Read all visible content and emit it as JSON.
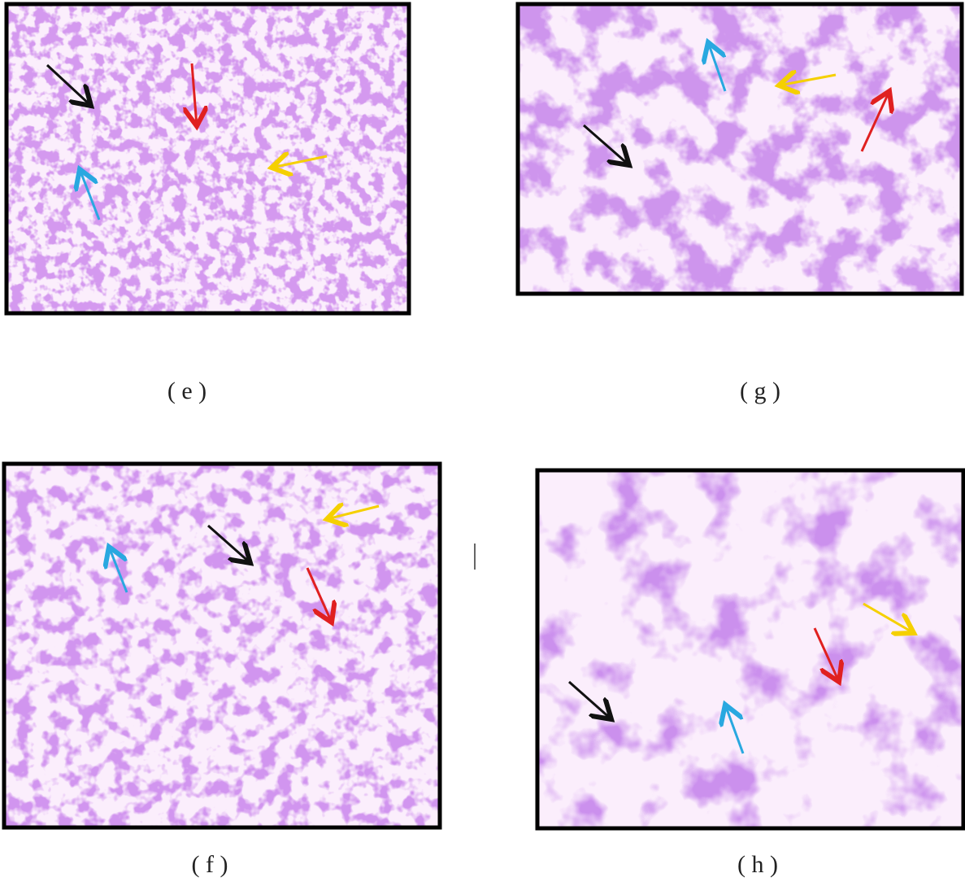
{
  "panels": [
    {
      "label": "( e )"
    },
    {
      "label": "( g )"
    },
    {
      "label": "( f )"
    },
    {
      "label": "( h )"
    }
  ]
}
